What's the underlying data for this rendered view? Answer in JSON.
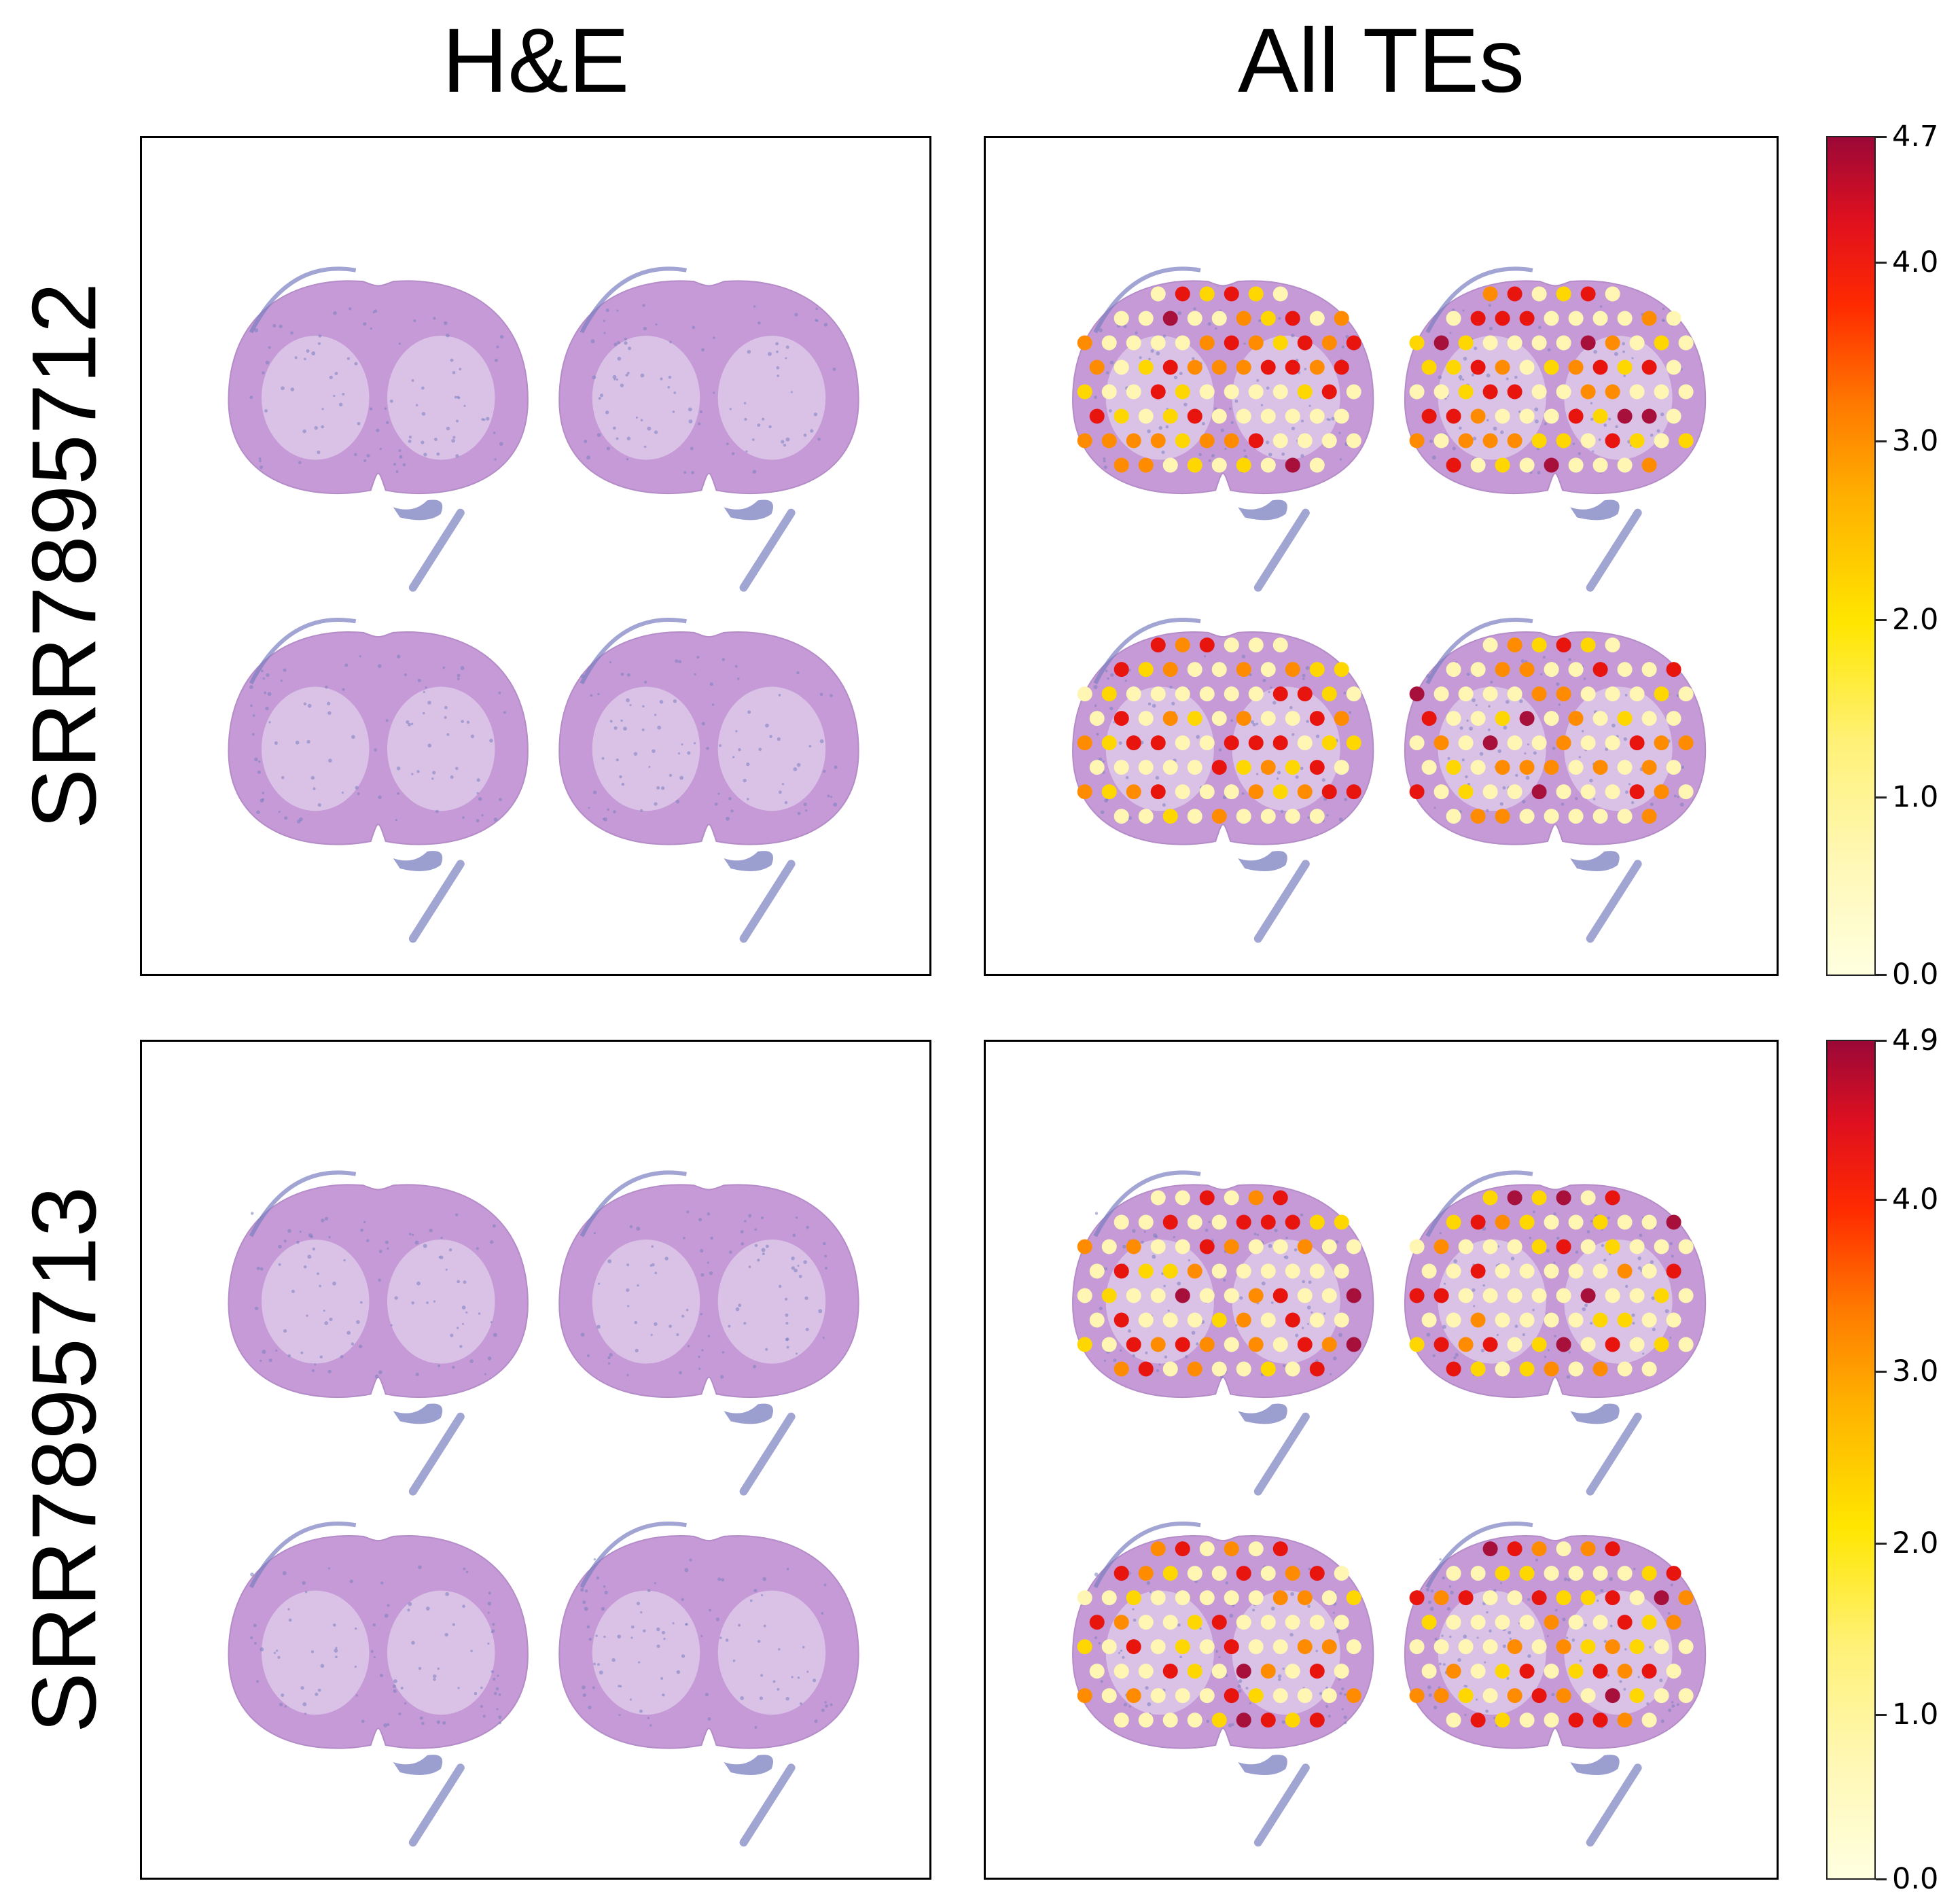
{
  "columns": {
    "left": "H&E",
    "right": "All TEs"
  },
  "rows": [
    {
      "label": "SRR7895712",
      "colorbar": {
        "max_label": "4.7",
        "labels": [
          "4.0",
          "3.0",
          "2.0",
          "1.0",
          "0.0"
        ]
      }
    },
    {
      "label": "SRR7895713",
      "colorbar": {
        "max_label": "4.9",
        "labels": [
          "4.0",
          "3.0",
          "2.0",
          "1.0",
          "0.0"
        ]
      }
    }
  ],
  "colors": {
    "tissue": "#c59ad6",
    "tissue_light": "#ddc9ea",
    "stain_blue": "#7a7fc0",
    "low": "#fff6b3",
    "mid": "#ffd700",
    "high": "#ff8c00",
    "vhigh": "#e8140e",
    "max": "#a8103c"
  }
}
